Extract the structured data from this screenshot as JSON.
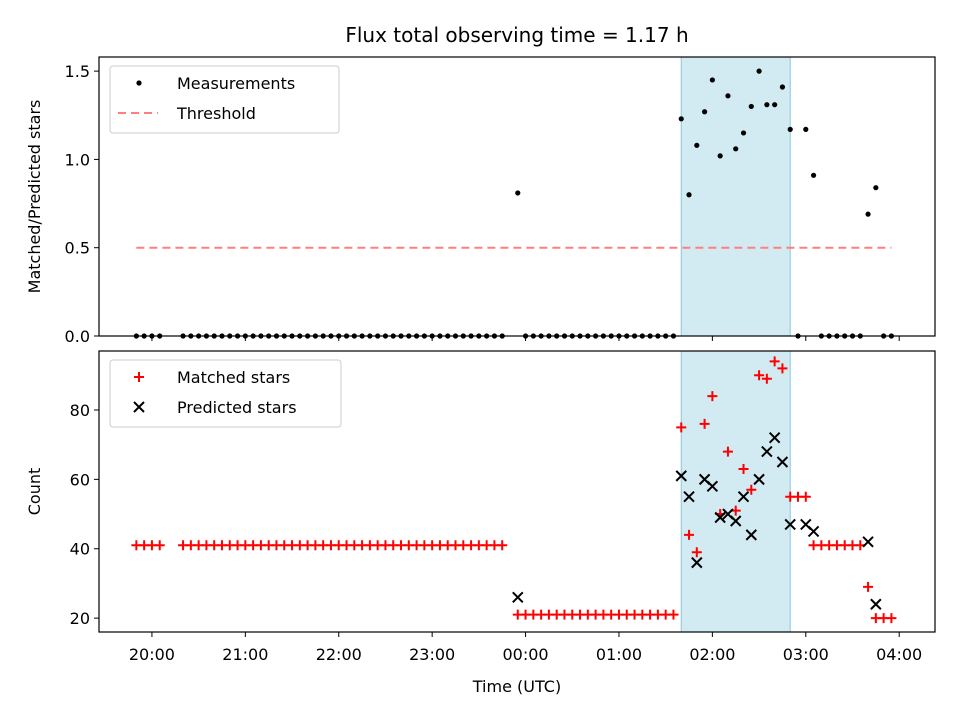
{
  "chart_data": {
    "title": "Flux total observing time = 1.17 h",
    "xlabel": "Time (UTC)",
    "x_ticks": [
      "20:00",
      "21:00",
      "22:00",
      "23:00",
      "00:00",
      "01:00",
      "02:00",
      "03:00",
      "04:00"
    ],
    "highlight_span": {
      "start": "01:40",
      "end": "02:50",
      "color": "#add8e6"
    },
    "panels": [
      {
        "type": "scatter",
        "ylabel": "Matched/Predicted stars",
        "ylim": [
          0,
          1.58
        ],
        "y_ticks": [
          "0.0",
          "0.5",
          "1.0",
          "1.5"
        ],
        "grid": false,
        "legend_position": "upper-left",
        "series": [
          {
            "name": "Measurements",
            "marker": "dot",
            "color": "#000000",
            "points": [
              [
                "19:50",
                0
              ],
              [
                "19:55",
                0
              ],
              [
                "20:00",
                0
              ],
              [
                "20:05",
                0
              ],
              [
                "20:20",
                0
              ],
              [
                "20:25",
                0
              ],
              [
                "20:30",
                0
              ],
              [
                "20:35",
                0
              ],
              [
                "20:40",
                0
              ],
              [
                "20:45",
                0
              ],
              [
                "20:50",
                0
              ],
              [
                "20:55",
                0
              ],
              [
                "21:00",
                0
              ],
              [
                "21:05",
                0
              ],
              [
                "21:10",
                0
              ],
              [
                "21:15",
                0
              ],
              [
                "21:20",
                0
              ],
              [
                "21:25",
                0
              ],
              [
                "21:30",
                0
              ],
              [
                "21:35",
                0
              ],
              [
                "21:40",
                0
              ],
              [
                "21:45",
                0
              ],
              [
                "21:50",
                0
              ],
              [
                "21:55",
                0
              ],
              [
                "22:00",
                0
              ],
              [
                "22:05",
                0
              ],
              [
                "22:10",
                0
              ],
              [
                "22:15",
                0
              ],
              [
                "22:20",
                0
              ],
              [
                "22:25",
                0
              ],
              [
                "22:30",
                0
              ],
              [
                "22:35",
                0
              ],
              [
                "22:40",
                0
              ],
              [
                "22:45",
                0
              ],
              [
                "22:50",
                0
              ],
              [
                "22:55",
                0
              ],
              [
                "23:00",
                0
              ],
              [
                "23:05",
                0
              ],
              [
                "23:10",
                0
              ],
              [
                "23:15",
                0
              ],
              [
                "23:20",
                0
              ],
              [
                "23:25",
                0
              ],
              [
                "23:30",
                0
              ],
              [
                "23:35",
                0
              ],
              [
                "23:40",
                0
              ],
              [
                "23:45",
                0
              ],
              [
                "23:55",
                0.81
              ],
              [
                "00:00",
                0
              ],
              [
                "00:05",
                0
              ],
              [
                "00:10",
                0
              ],
              [
                "00:15",
                0
              ],
              [
                "00:20",
                0
              ],
              [
                "00:25",
                0
              ],
              [
                "00:30",
                0
              ],
              [
                "00:35",
                0
              ],
              [
                "00:40",
                0
              ],
              [
                "00:45",
                0
              ],
              [
                "00:50",
                0
              ],
              [
                "00:55",
                0
              ],
              [
                "01:00",
                0
              ],
              [
                "01:05",
                0
              ],
              [
                "01:10",
                0
              ],
              [
                "01:15",
                0
              ],
              [
                "01:20",
                0
              ],
              [
                "01:25",
                0
              ],
              [
                "01:30",
                0
              ],
              [
                "01:35",
                0
              ],
              [
                "01:40",
                1.23
              ],
              [
                "01:45",
                0.8
              ],
              [
                "01:50",
                1.08
              ],
              [
                "01:55",
                1.27
              ],
              [
                "02:00",
                1.45
              ],
              [
                "02:05",
                1.02
              ],
              [
                "02:10",
                1.36
              ],
              [
                "02:15",
                1.06
              ],
              [
                "02:20",
                1.15
              ],
              [
                "02:25",
                1.3
              ],
              [
                "02:30",
                1.5
              ],
              [
                "02:35",
                1.31
              ],
              [
                "02:40",
                1.31
              ],
              [
                "02:45",
                1.41
              ],
              [
                "02:50",
                1.17
              ],
              [
                "02:55",
                0
              ],
              [
                "03:00",
                1.17
              ],
              [
                "03:05",
                0.91
              ],
              [
                "03:10",
                0
              ],
              [
                "03:15",
                0
              ],
              [
                "03:20",
                0
              ],
              [
                "03:25",
                0
              ],
              [
                "03:30",
                0
              ],
              [
                "03:35",
                0
              ],
              [
                "03:40",
                0.69
              ],
              [
                "03:45",
                0.84
              ],
              [
                "03:50",
                0
              ],
              [
                "03:55",
                0
              ]
            ]
          },
          {
            "name": "Threshold",
            "marker": "dashed-line",
            "color": "#ff7f7f",
            "points": [
              [
                "19:50",
                0.5
              ],
              [
                "03:55",
                0.5
              ]
            ]
          }
        ]
      },
      {
        "type": "scatter",
        "ylabel": "Count",
        "ylim": [
          16,
          97
        ],
        "y_ticks": [
          "20",
          "40",
          "60",
          "80"
        ],
        "grid": false,
        "legend_position": "upper-left",
        "series": [
          {
            "name": "Matched stars",
            "marker": "plus",
            "color": "#ff0000",
            "points": [
              [
                "19:50",
                41
              ],
              [
                "19:55",
                41
              ],
              [
                "20:00",
                41
              ],
              [
                "20:05",
                41
              ],
              [
                "20:20",
                41
              ],
              [
                "20:25",
                41
              ],
              [
                "20:30",
                41
              ],
              [
                "20:35",
                41
              ],
              [
                "20:40",
                41
              ],
              [
                "20:45",
                41
              ],
              [
                "20:50",
                41
              ],
              [
                "20:55",
                41
              ],
              [
                "21:00",
                41
              ],
              [
                "21:05",
                41
              ],
              [
                "21:10",
                41
              ],
              [
                "21:15",
                41
              ],
              [
                "21:20",
                41
              ],
              [
                "21:25",
                41
              ],
              [
                "21:30",
                41
              ],
              [
                "21:35",
                41
              ],
              [
                "21:40",
                41
              ],
              [
                "21:45",
                41
              ],
              [
                "21:50",
                41
              ],
              [
                "21:55",
                41
              ],
              [
                "22:00",
                41
              ],
              [
                "22:05",
                41
              ],
              [
                "22:10",
                41
              ],
              [
                "22:15",
                41
              ],
              [
                "22:20",
                41
              ],
              [
                "22:25",
                41
              ],
              [
                "22:30",
                41
              ],
              [
                "22:35",
                41
              ],
              [
                "22:40",
                41
              ],
              [
                "22:45",
                41
              ],
              [
                "22:50",
                41
              ],
              [
                "22:55",
                41
              ],
              [
                "23:00",
                41
              ],
              [
                "23:05",
                41
              ],
              [
                "23:10",
                41
              ],
              [
                "23:15",
                41
              ],
              [
                "23:20",
                41
              ],
              [
                "23:25",
                41
              ],
              [
                "23:30",
                41
              ],
              [
                "23:35",
                41
              ],
              [
                "23:40",
                41
              ],
              [
                "23:45",
                41
              ],
              [
                "23:55",
                21
              ],
              [
                "00:00",
                21
              ],
              [
                "00:05",
                21
              ],
              [
                "00:10",
                21
              ],
              [
                "00:15",
                21
              ],
              [
                "00:20",
                21
              ],
              [
                "00:25",
                21
              ],
              [
                "00:30",
                21
              ],
              [
                "00:35",
                21
              ],
              [
                "00:40",
                21
              ],
              [
                "00:45",
                21
              ],
              [
                "00:50",
                21
              ],
              [
                "00:55",
                21
              ],
              [
                "01:00",
                21
              ],
              [
                "01:05",
                21
              ],
              [
                "01:10",
                21
              ],
              [
                "01:15",
                21
              ],
              [
                "01:20",
                21
              ],
              [
                "01:25",
                21
              ],
              [
                "01:30",
                21
              ],
              [
                "01:35",
                21
              ],
              [
                "01:40",
                75
              ],
              [
                "01:45",
                44
              ],
              [
                "01:50",
                39
              ],
              [
                "01:55",
                76
              ],
              [
                "02:00",
                84
              ],
              [
                "02:05",
                50
              ],
              [
                "02:10",
                68
              ],
              [
                "02:15",
                51
              ],
              [
                "02:20",
                63
              ],
              [
                "02:25",
                57
              ],
              [
                "02:30",
                90
              ],
              [
                "02:35",
                89
              ],
              [
                "02:40",
                94
              ],
              [
                "02:45",
                92
              ],
              [
                "02:50",
                55
              ],
              [
                "02:55",
                55
              ],
              [
                "03:00",
                55
              ],
              [
                "03:05",
                41
              ],
              [
                "03:10",
                41
              ],
              [
                "03:15",
                41
              ],
              [
                "03:20",
                41
              ],
              [
                "03:25",
                41
              ],
              [
                "03:30",
                41
              ],
              [
                "03:35",
                41
              ],
              [
                "03:40",
                29
              ],
              [
                "03:45",
                20
              ],
              [
                "03:50",
                20
              ],
              [
                "03:55",
                20
              ]
            ]
          },
          {
            "name": "Predicted stars",
            "marker": "x",
            "color": "#000000",
            "points": [
              [
                "23:55",
                26
              ],
              [
                "01:40",
                61
              ],
              [
                "01:45",
                55
              ],
              [
                "01:50",
                36
              ],
              [
                "01:55",
                60
              ],
              [
                "02:00",
                58
              ],
              [
                "02:05",
                49
              ],
              [
                "02:10",
                50
              ],
              [
                "02:15",
                48
              ],
              [
                "02:20",
                55
              ],
              [
                "02:25",
                44
              ],
              [
                "02:30",
                60
              ],
              [
                "02:35",
                68
              ],
              [
                "02:40",
                72
              ],
              [
                "02:45",
                65
              ],
              [
                "02:50",
                47
              ],
              [
                "03:00",
                47
              ],
              [
                "03:05",
                45
              ],
              [
                "03:40",
                42
              ],
              [
                "03:45",
                24
              ]
            ]
          }
        ]
      }
    ]
  }
}
